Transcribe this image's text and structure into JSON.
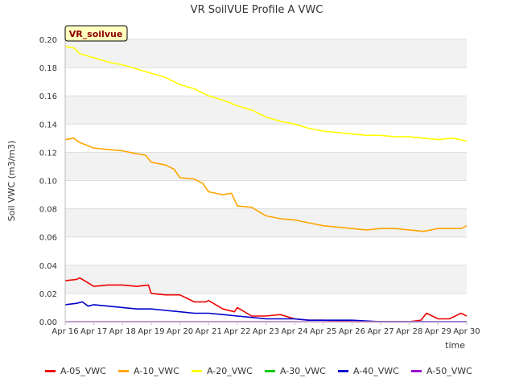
{
  "chart_data": {
    "type": "line",
    "title": "VR SoilVUE Profile A VWC",
    "site_badge": "VR_soilvue",
    "xlabel": "time",
    "ylabel": "Soil VWC (m3/m3)",
    "x_tick_labels": [
      "Apr 16",
      "Apr 17",
      "Apr 18",
      "Apr 19",
      "Apr 20",
      "Apr 21",
      "Apr 22",
      "Apr 23",
      "Apr 24",
      "Apr 25",
      "Apr 26",
      "Apr 27",
      "Apr 28",
      "Apr 29",
      "Apr 30"
    ],
    "xlim": [
      16,
      30
    ],
    "ylim": [
      0,
      0.2
    ],
    "y_ticks": [
      "0.00",
      "0.02",
      "0.04",
      "0.06",
      "0.08",
      "0.10",
      "0.12",
      "0.14",
      "0.16",
      "0.18",
      "0.20"
    ],
    "grid": true,
    "legend_position": "bottom",
    "x_unit": "day of April",
    "series": [
      {
        "name": "A-05_VWC",
        "color": "#ee0000",
        "x": [
          16.0,
          16.4,
          16.5,
          16.6,
          17.0,
          17.5,
          18.0,
          18.5,
          18.9,
          19.0,
          19.5,
          20.0,
          20.5,
          20.9,
          21.0,
          21.5,
          21.9,
          22.0,
          22.5,
          23.0,
          23.5,
          24.0,
          24.5,
          25.0,
          26.0,
          27.0,
          28.0,
          28.4,
          28.6,
          28.8,
          29.0,
          29.4,
          29.5,
          29.8,
          30.0
        ],
        "values": [
          0.029,
          0.03,
          0.031,
          0.03,
          0.025,
          0.026,
          0.026,
          0.025,
          0.026,
          0.02,
          0.019,
          0.019,
          0.014,
          0.014,
          0.015,
          0.009,
          0.007,
          0.01,
          0.004,
          0.004,
          0.005,
          0.002,
          0.001,
          0.001,
          0.0,
          0.0,
          0.0,
          0.001,
          0.006,
          0.004,
          0.002,
          0.002,
          0.003,
          0.006,
          0.004
        ]
      },
      {
        "name": "A-10_VWC",
        "color": "#ffa500",
        "x": [
          16.0,
          16.3,
          16.5,
          17.0,
          17.5,
          18.0,
          18.5,
          18.8,
          19.0,
          19.5,
          19.8,
          20.0,
          20.5,
          20.8,
          21.0,
          21.5,
          21.8,
          22.0,
          22.5,
          23.0,
          23.5,
          24.0,
          24.5,
          25.0,
          25.5,
          26.0,
          26.5,
          27.0,
          27.5,
          28.0,
          28.5,
          29.0,
          29.5,
          29.8,
          30.0
        ],
        "values": [
          0.129,
          0.13,
          0.127,
          0.123,
          0.122,
          0.121,
          0.119,
          0.118,
          0.113,
          0.111,
          0.108,
          0.102,
          0.101,
          0.098,
          0.092,
          0.09,
          0.091,
          0.082,
          0.081,
          0.075,
          0.073,
          0.072,
          0.07,
          0.068,
          0.067,
          0.066,
          0.065,
          0.066,
          0.066,
          0.065,
          0.064,
          0.066,
          0.066,
          0.066,
          0.068
        ]
      },
      {
        "name": "A-20_VWC",
        "color": "#ffff00",
        "x": [
          16.0,
          16.3,
          16.5,
          17.0,
          17.5,
          18.0,
          18.5,
          19.0,
          19.5,
          20.0,
          20.5,
          21.0,
          21.5,
          22.0,
          22.5,
          23.0,
          23.5,
          24.0,
          24.5,
          25.0,
          25.5,
          26.0,
          26.5,
          27.0,
          27.5,
          28.0,
          28.5,
          29.0,
          29.5,
          30.0
        ],
        "values": [
          0.195,
          0.194,
          0.19,
          0.187,
          0.184,
          0.182,
          0.179,
          0.176,
          0.173,
          0.168,
          0.165,
          0.16,
          0.157,
          0.153,
          0.15,
          0.145,
          0.142,
          0.14,
          0.137,
          0.135,
          0.134,
          0.133,
          0.132,
          0.132,
          0.131,
          0.131,
          0.13,
          0.129,
          0.13,
          0.128
        ]
      },
      {
        "name": "A-30_VWC",
        "color": "#00cc00",
        "x": [],
        "values": []
      },
      {
        "name": "A-40_VWC",
        "color": "#0000cc",
        "x": [
          16.0,
          16.4,
          16.6,
          16.8,
          17.0,
          17.5,
          18.0,
          18.5,
          19.0,
          19.5,
          20.0,
          20.5,
          21.0,
          21.5,
          22.0,
          22.5,
          23.0,
          23.5,
          24.0,
          24.5,
          25.0,
          26.0,
          27.0,
          28.0,
          29.0,
          30.0
        ],
        "values": [
          0.012,
          0.013,
          0.014,
          0.011,
          0.012,
          0.011,
          0.01,
          0.009,
          0.009,
          0.008,
          0.007,
          0.006,
          0.006,
          0.005,
          0.004,
          0.003,
          0.002,
          0.002,
          0.002,
          0.001,
          0.001,
          0.001,
          0.0,
          0.0,
          0.0,
          0.0
        ]
      },
      {
        "name": "A-50_VWC",
        "color": "#9900cc",
        "x": [
          16.0,
          30.0
        ],
        "values": [
          0.0,
          0.0
        ]
      }
    ]
  }
}
